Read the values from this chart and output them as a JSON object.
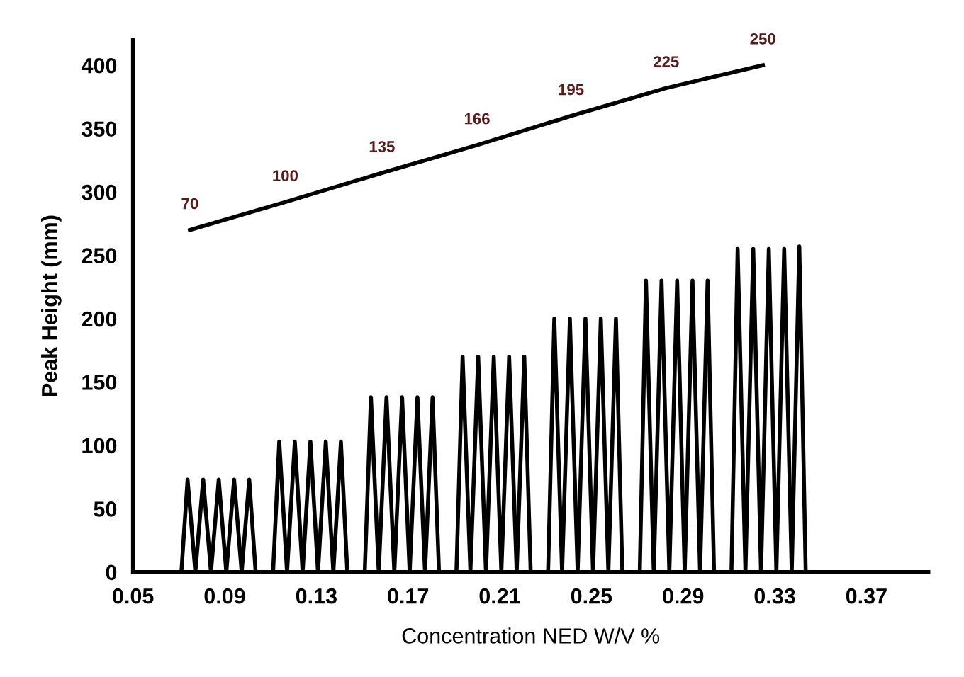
{
  "chart_data": {
    "type": "line",
    "xlabel": "Concentration NED W/V %",
    "ylabel": "Peak Height (mm)",
    "xlim": [
      0.05,
      0.397
    ],
    "xticks": [
      {
        "value": 0.05,
        "label": "0.05"
      },
      {
        "value": 0.09,
        "label": "0.09"
      },
      {
        "value": 0.13,
        "label": "0.13"
      },
      {
        "value": 0.17,
        "label": "0.17"
      },
      {
        "value": 0.21,
        "label": "0.21"
      },
      {
        "value": 0.25,
        "label": "0.25"
      },
      {
        "value": 0.29,
        "label": "0.29"
      },
      {
        "value": 0.33,
        "label": "0.33"
      },
      {
        "value": 0.37,
        "label": "0.37"
      }
    ],
    "ylim": [
      0,
      420
    ],
    "yticks": [
      0,
      50,
      100,
      150,
      200,
      250,
      300,
      350,
      400
    ],
    "grid": false,
    "annotations": [
      {
        "text": "70",
        "x": 0.0748,
        "y": 270
      },
      {
        "text": "100",
        "x": 0.1164,
        "y": 292
      },
      {
        "text": "135",
        "x": 0.1586,
        "y": 315
      },
      {
        "text": "166",
        "x": 0.2001,
        "y": 337
      },
      {
        "text": "195",
        "x": 0.2411,
        "y": 360
      },
      {
        "text": "225",
        "x": 0.2826,
        "y": 382
      },
      {
        "text": "250",
        "x": 0.3248,
        "y": 400
      }
    ],
    "marker": "none",
    "line_style": "solid",
    "series": [
      {
        "color": "#000000",
        "x": [
          0.0748,
          0.1164,
          0.1586,
          0.2001,
          0.2411,
          0.2826,
          0.3248
        ],
        "values": [
          270,
          292,
          315,
          337,
          360,
          382,
          400
        ]
      },
      {
        "color": "#000000",
        "x": [
          0.0711,
          0.0738,
          0.0772,
          0.0806,
          0.084,
          0.0874,
          0.0907,
          0.0941,
          0.0974,
          0.1007,
          0.1035,
          0.107,
          0.1111,
          0.1138,
          0.1172,
          0.1206,
          0.124,
          0.1274,
          0.1307,
          0.1341,
          0.1374,
          0.1407,
          0.1435,
          0.147,
          0.1511,
          0.1538,
          0.1572,
          0.1606,
          0.164,
          0.1674,
          0.1707,
          0.1741,
          0.1774,
          0.1807,
          0.1835,
          0.187,
          0.1911,
          0.1938,
          0.1972,
          0.2006,
          0.204,
          0.2074,
          0.2107,
          0.2141,
          0.2174,
          0.2207,
          0.2235,
          0.227,
          0.2311,
          0.2338,
          0.2372,
          0.2406,
          0.244,
          0.2474,
          0.2507,
          0.2541,
          0.2574,
          0.2607,
          0.2635,
          0.267,
          0.2711,
          0.2738,
          0.2772,
          0.2806,
          0.284,
          0.2874,
          0.2907,
          0.2941,
          0.2974,
          0.3007,
          0.3035,
          0.307,
          0.3111,
          0.3138,
          0.3172,
          0.3206,
          0.324,
          0.3274,
          0.3307,
          0.3341,
          0.3374,
          0.3407,
          0.3435
        ],
        "values": [
          0,
          73,
          0,
          73,
          0,
          73,
          0,
          73,
          0,
          73,
          0,
          null,
          0,
          103,
          0,
          103,
          0,
          103,
          0,
          103,
          0,
          103,
          0,
          null,
          0,
          138,
          0,
          138,
          0,
          138,
          0,
          138,
          0,
          138,
          0,
          null,
          0,
          170,
          0,
          170,
          0,
          170,
          0,
          170,
          0,
          170,
          0,
          null,
          0,
          200,
          0,
          200,
          0,
          200,
          0,
          200,
          0,
          200,
          0,
          null,
          0,
          230,
          0,
          230,
          0,
          230,
          0,
          230,
          0,
          230,
          0,
          null,
          0,
          255,
          0,
          255,
          0,
          255,
          0,
          255,
          0,
          257,
          0
        ]
      }
    ]
  }
}
